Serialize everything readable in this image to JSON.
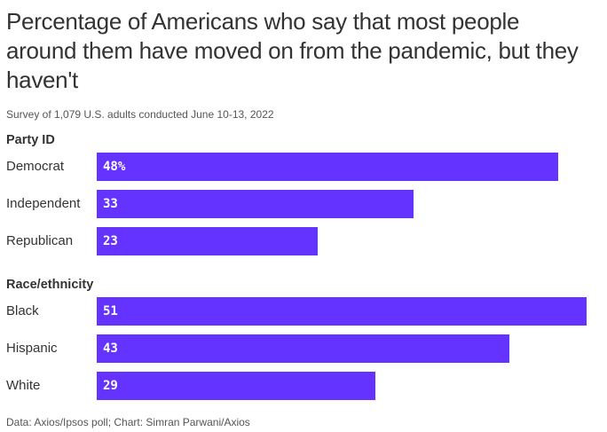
{
  "chart_data": {
    "type": "bar",
    "orientation": "horizontal",
    "title": "Percentage of Americans who say that most people around them have moved on from the pandemic, but they haven't",
    "subtitle": "Survey of 1,079 U.S. adults conducted June 10-13, 2022",
    "xlim": [
      0,
      51
    ],
    "groups": [
      {
        "name": "Party ID",
        "categories": [
          "Democrat",
          "Independent",
          "Republican"
        ],
        "values": [
          48,
          33,
          23
        ],
        "labels": [
          "48%",
          "33",
          "23"
        ]
      },
      {
        "name": "Race/ethnicity",
        "categories": [
          "Black",
          "Hispanic",
          "White"
        ],
        "values": [
          51,
          43,
          29
        ],
        "labels": [
          "51",
          "43",
          "29"
        ]
      }
    ],
    "bar_color": "#6533ff",
    "source": "Data: Axios/Ipsos poll; Chart: Simran Parwani/Axios"
  }
}
